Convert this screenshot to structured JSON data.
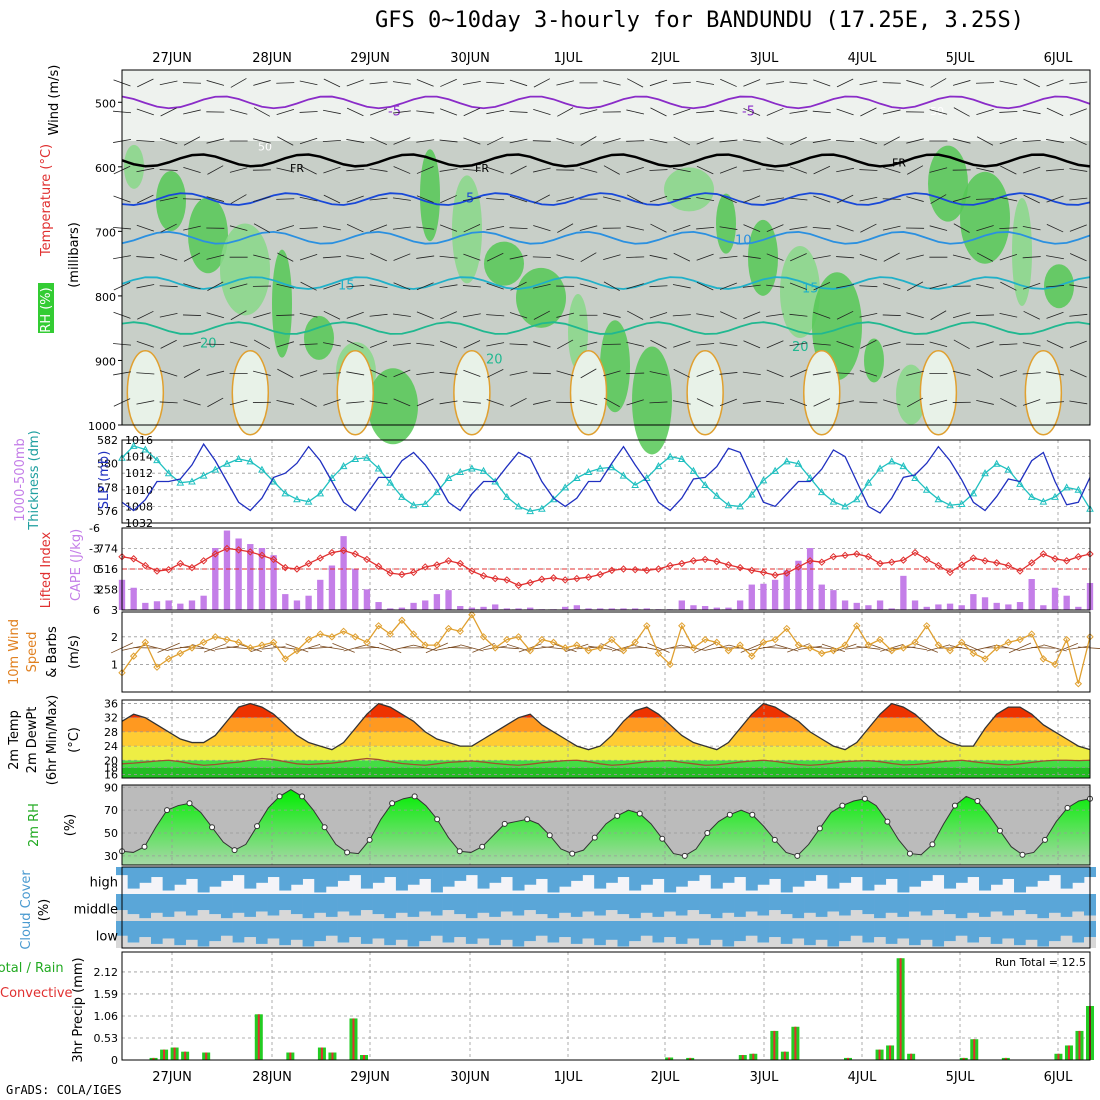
{
  "title": "GFS 0~10day 3-hourly for BANDUNDU (17.25E, 3.25S)",
  "credit": "GrADS: COLA/IGES",
  "dates": [
    "27JUN",
    "28JUN",
    "29JUN",
    "30JUN",
    "1JUL",
    "2JUL",
    "3JUL",
    "4JUL",
    "5JUL",
    "6JUL"
  ],
  "colors": {
    "green": "#22cc22",
    "rh_bright": "#00ee00",
    "cape": "#c47ee8",
    "red": "#e03030",
    "cyan": "#20c0c0",
    "blue": "#2030c0",
    "orange": "#e0a030",
    "cloud": "#5aa6d8",
    "grey": "#d8d8d8"
  },
  "chart_data": [
    {
      "type": "heatmap",
      "name": "pressure-time cross section",
      "ylabel": "Wind (m/s)",
      "ylabel2": "Temperature (°C)",
      "ylabel3": "RH (%)",
      "ylabel4": "(millibars)",
      "y_ticks": [
        500,
        600,
        700,
        800,
        900,
        1000
      ],
      "ylim": [
        1000,
        450
      ],
      "contour_labels": [
        "-5",
        "FR",
        "5",
        "10",
        "15",
        "20",
        "50"
      ],
      "temperature_levels_mb": {
        "-5": 500,
        "0": 590,
        "5": 650,
        "10": 710,
        "15": 780,
        "20": 850
      }
    },
    {
      "type": "line",
      "name": "sea level pressure and thickness",
      "ylabel_left": "Thickness (dm)",
      "ylabel_left_title": "1000-500mb",
      "ylabel_right": "SLP (mb)",
      "left_ticks": [
        "576",
        "578",
        "580",
        "582"
      ],
      "right_ticks": [
        "1008",
        "1010",
        "1012",
        "1014",
        "1016"
      ],
      "right_tick_bottom": "1032",
      "series": [
        {
          "name": "SLP",
          "axis": "right",
          "values": [
            1008.5,
            1007.5,
            1008.8,
            1011.0,
            1011.0,
            1011.3,
            1013.0,
            1015.5,
            1013.5,
            1011.0,
            1008.5,
            1007.5,
            1009.0,
            1011.5,
            1012.0,
            1013.2,
            1015.2,
            1013.5,
            1011.0,
            1008.5,
            1007.5,
            1009.5,
            1011.5,
            1011.5,
            1013.5,
            1014.5,
            1013.0,
            1011.0,
            1008.5,
            1007.5,
            1009.5,
            1011.0,
            1011.0,
            1012.8,
            1014.5,
            1013.8,
            1011.0,
            1009.0,
            1008.0,
            1009.0,
            1011.0,
            1011.0,
            1013.2,
            1015.2,
            1013.0,
            1011.0,
            1008.5,
            1007.5,
            1009.0,
            1011.3,
            1011.5,
            1012.8,
            1015.0,
            1014.5,
            1011.5,
            1008.5,
            1008.0,
            1009.5,
            1011.0,
            1011.0,
            1012.5,
            1014.8,
            1014.0,
            1011.0,
            1008.0,
            1007.2,
            1009.0,
            1011.5,
            1011.8,
            1013.2,
            1015.2,
            1013.5,
            1011.2,
            1008.5,
            1007.5,
            1009.2,
            1011.3,
            1011.0,
            1013.5,
            1014.5,
            1011.0,
            1008.2,
            1008.5,
            1011.5
          ]
        },
        {
          "name": "Thickness",
          "axis": "left",
          "values": [
            580.5,
            581.5,
            581.2,
            580.3,
            579.2,
            578.4,
            578.5,
            579.0,
            579.5,
            580.0,
            580.4,
            580.2,
            579.5,
            578.5,
            577.5,
            577.0,
            576.8,
            577.5,
            578.8,
            579.8,
            580.4,
            580.5,
            579.6,
            578.4,
            577.2,
            576.5,
            576.6,
            577.6,
            578.8,
            579.3,
            579.6,
            579.4,
            578.5,
            577.2,
            576.4,
            576.0,
            576.2,
            577.0,
            578.0,
            578.8,
            579.3,
            579.6,
            579.7,
            579.0,
            578.2,
            578.8,
            579.8,
            580.6,
            580.4,
            579.4,
            578.2,
            577.3,
            576.5,
            576.4,
            577.4,
            578.6,
            579.4,
            580.2,
            580.0,
            578.8,
            577.6,
            576.8,
            576.4,
            577.0,
            578.4,
            579.6,
            580.2,
            579.8,
            578.8,
            577.8,
            577.0,
            576.5,
            576.6,
            577.5,
            579.2,
            580.0,
            579.5,
            578.3,
            577.2,
            576.8,
            577.2,
            578.0,
            577.8,
            576.2
          ]
        }
      ]
    },
    {
      "type": "bar",
      "name": "CAPE and Lifted Index",
      "ylabel_left": "Lifted Index",
      "ylabel_right": "CAPE (J/kg)",
      "left_ticks": [
        "-6",
        "-3",
        "0",
        "3",
        "6"
      ],
      "right_ticks": [
        "3",
        "258",
        "516",
        "774"
      ],
      "series": [
        {
          "name": "CAPE",
          "values": [
            380,
            280,
            90,
            110,
            120,
            80,
            120,
            180,
            780,
            1000,
            900,
            830,
            780,
            690,
            200,
            120,
            180,
            380,
            560,
            930,
            520,
            260,
            100,
            20,
            30,
            90,
            120,
            200,
            250,
            50,
            30,
            40,
            70,
            20,
            20,
            30,
            10,
            10,
            40,
            60,
            20,
            20,
            20,
            20,
            20,
            20,
            10,
            10,
            120,
            60,
            50,
            30,
            30,
            120,
            320,
            330,
            380,
            500,
            620,
            780,
            320,
            250,
            120,
            90,
            60,
            120,
            20,
            430,
            120,
            40,
            70,
            80,
            60,
            200,
            160,
            90,
            70,
            100,
            390,
            60,
            280,
            180,
            40,
            340
          ]
        },
        {
          "name": "Lifted Index",
          "values": [
            -1.8,
            -1.5,
            -0.5,
            0.3,
            0.1,
            -0.8,
            -0.2,
            -1.2,
            -2.2,
            -3.0,
            -2.8,
            -2.5,
            -2.0,
            -1.4,
            -0.2,
            0.0,
            -0.8,
            -1.6,
            -2.4,
            -2.7,
            -2.2,
            -1.4,
            -0.4,
            0.6,
            0.8,
            0.5,
            -0.3,
            -0.6,
            -1.2,
            -0.8,
            0.3,
            1.0,
            1.4,
            1.6,
            2.4,
            2.0,
            1.5,
            1.3,
            1.6,
            1.4,
            1.2,
            0.8,
            0.2,
            0.0,
            0.1,
            0.2,
            0.0,
            -0.5,
            -0.8,
            -1.2,
            -1.4,
            -1.1,
            -0.6,
            -0.2,
            0.2,
            0.5,
            0.9,
            0.6,
            -0.3,
            -1.2,
            -1.0,
            -1.8,
            -2.0,
            -2.2,
            -1.8,
            -0.8,
            -1.0,
            -1.3,
            -2.4,
            -1.4,
            -0.5,
            0.5,
            -0.6,
            -1.6,
            -1.2,
            -0.9,
            -0.5,
            0.3,
            -0.9,
            -2.2,
            -1.5,
            -1.2,
            -1.8,
            -2.2
          ]
        }
      ]
    },
    {
      "type": "line",
      "name": "10m wind speed and barbs",
      "ylabel": "10m Wind",
      "ylabel2": "Speed",
      "ylabel3": "& Barbs",
      "ylabel4": "(m/s)",
      "y_ticks": [
        "1",
        "2"
      ],
      "series": [
        {
          "name": "Speed",
          "values": [
            0.7,
            1.3,
            1.8,
            0.9,
            1.2,
            1.4,
            1.6,
            1.8,
            2.0,
            1.9,
            1.8,
            1.6,
            1.7,
            1.8,
            1.2,
            1.5,
            1.9,
            2.1,
            2.0,
            2.2,
            2.0,
            1.8,
            2.4,
            2.1,
            2.6,
            2.1,
            1.7,
            1.7,
            2.3,
            2.2,
            2.8,
            2.0,
            1.6,
            1.9,
            2.0,
            1.5,
            1.9,
            1.8,
            1.6,
            1.7,
            1.5,
            1.6,
            1.9,
            1.5,
            1.8,
            2.4,
            1.4,
            1.0,
            2.4,
            1.6,
            1.9,
            1.8,
            1.5,
            1.7,
            1.3,
            1.8,
            1.9,
            2.3,
            1.7,
            1.6,
            1.4,
            1.5,
            1.7,
            2.4,
            1.7,
            1.9,
            1.5,
            1.6,
            1.8,
            2.4,
            1.7,
            1.5,
            1.8,
            1.4,
            1.2,
            1.6,
            1.8,
            1.9,
            2.1,
            1.2,
            1.0,
            1.9,
            0.3,
            2.0
          ]
        }
      ]
    },
    {
      "type": "area",
      "name": "2m temperature and dewpoint",
      "ylabel": "2m Temp",
      "ylabel2": "2m DewPt",
      "ylabel3": "(6hr Min/Max)",
      "ylabel4": "(°C)",
      "y_ticks": [
        "16",
        "18",
        "20",
        "24",
        "28",
        "32",
        "36"
      ],
      "series": [
        {
          "name": "2m Temp",
          "values": [
            31,
            33,
            32,
            30,
            28,
            26,
            25,
            25,
            27,
            31,
            35,
            36,
            35,
            33,
            30,
            27,
            25,
            24,
            23,
            25,
            29,
            33,
            36,
            35,
            33,
            31,
            28,
            26,
            25,
            24,
            24,
            26,
            28,
            30,
            32,
            33,
            30,
            28,
            26,
            24,
            23,
            24,
            27,
            31,
            34,
            35,
            33,
            30,
            27,
            25,
            24,
            23,
            25,
            29,
            33,
            36,
            35,
            33,
            31,
            28,
            26,
            24,
            23,
            25,
            29,
            33,
            36,
            35,
            33,
            30,
            27,
            25,
            24,
            24,
            29,
            33,
            35,
            35,
            33,
            30,
            28,
            26,
            24,
            23
          ]
        },
        {
          "name": "2m DewPt",
          "values": [
            19,
            19.2,
            19.5,
            19.8,
            20,
            19.6,
            19,
            18.6,
            18.8,
            19.2,
            19.5,
            20,
            20.5,
            20.2,
            19.6,
            19,
            18.8,
            19,
            19.2,
            19.6,
            20.1,
            20.5,
            20.2,
            19.6,
            19.1,
            18.8,
            18.6,
            19,
            19.4,
            19.6,
            19.8,
            19.5,
            19.1,
            18.8,
            18.6,
            18.9,
            19.3,
            19.6,
            19.9,
            20,
            19.6,
            19,
            18.6,
            18.8,
            19.2,
            19.6,
            19.8,
            19.9,
            19.4,
            19,
            18.6,
            18.7,
            19.1,
            19.5,
            19.8,
            20,
            19.7,
            19.2,
            18.8,
            18.6,
            18.8,
            19.2,
            19.6,
            19.8,
            19.9,
            19.6,
            19.1,
            18.7,
            18.8,
            19.1,
            19.5,
            19.8,
            20,
            19.6,
            19.2,
            18.9,
            18.7,
            19,
            19.4,
            19.8,
            20,
            20,
            19.9,
            20
          ]
        }
      ]
    },
    {
      "type": "area",
      "name": "2m relative humidity",
      "ylabel": "2m RH",
      "ylabel2": "(%)",
      "y_ticks": [
        "30",
        "50",
        "70",
        "90"
      ],
      "series": [
        {
          "name": "2m RH",
          "values": [
            34,
            33,
            38,
            55,
            70,
            74,
            76,
            68,
            55,
            42,
            35,
            40,
            56,
            72,
            82,
            88,
            82,
            70,
            55,
            40,
            33,
            32,
            44,
            62,
            76,
            80,
            82,
            74,
            62,
            46,
            34,
            33,
            38,
            48,
            58,
            60,
            62,
            58,
            48,
            36,
            32,
            35,
            46,
            58,
            65,
            70,
            67,
            58,
            45,
            32,
            30,
            36,
            50,
            60,
            66,
            70,
            66,
            56,
            44,
            33,
            30,
            40,
            54,
            68,
            74,
            78,
            80,
            74,
            60,
            44,
            32,
            31,
            40,
            58,
            74,
            82,
            78,
            66,
            52,
            38,
            31,
            33,
            44,
            60,
            72,
            78,
            80
          ]
        }
      ]
    },
    {
      "type": "heatmap",
      "name": "cloud cover",
      "ylabel": "Cloud Cover",
      "ylabel2": "(%)",
      "row_labels": [
        "high",
        "middle",
        "low"
      ]
    },
    {
      "type": "bar",
      "name": "3hr precipitation",
      "ylabel": "3hr Precip (mm)",
      "ylabel_total": "Total / Rain",
      "ylabel_conv": "Convective",
      "annotation": "Run Total = 12.5",
      "y_ticks": [
        "0",
        "0.53",
        "1.06",
        "1.59",
        "2.12"
      ],
      "ylim": [
        0,
        2.6
      ],
      "series": [
        {
          "name": "Total",
          "values": [
            0,
            0,
            0,
            0.05,
            0.25,
            0.3,
            0.2,
            0,
            0.18,
            0,
            0,
            0,
            0,
            1.1,
            0,
            0,
            0.18,
            0,
            0,
            0.3,
            0.18,
            0,
            1.0,
            0.12,
            0,
            0,
            0,
            0,
            0,
            0,
            0,
            0,
            0,
            0,
            0,
            0,
            0,
            0,
            0,
            0,
            0,
            0,
            0,
            0,
            0,
            0,
            0,
            0,
            0,
            0,
            0,
            0,
            0.06,
            0,
            0.05,
            0,
            0,
            0,
            0,
            0.12,
            0.15,
            0,
            0.7,
            0.2,
            0.8,
            0,
            0,
            0,
            0,
            0.05,
            0,
            0,
            0.25,
            0.35,
            2.45,
            0.15,
            0,
            0,
            0,
            0,
            0.05,
            0.5,
            0,
            0,
            0.05,
            0,
            0,
            0,
            0,
            0.15,
            0.35,
            0.7,
            1.3
          ]
        }
      ]
    }
  ]
}
